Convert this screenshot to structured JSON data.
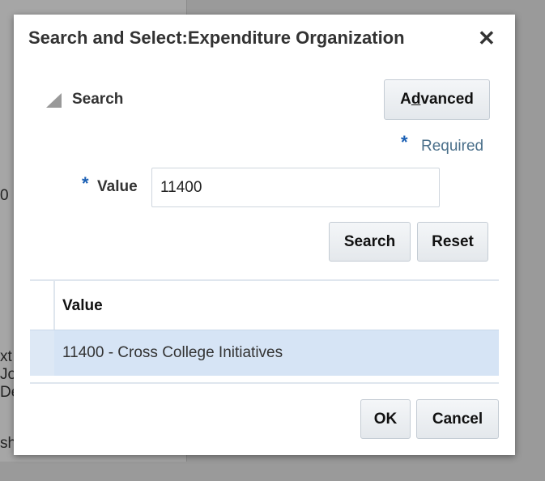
{
  "background": {
    "fragments": [
      "0",
      "xt",
      "Jo",
      "De",
      "sh"
    ]
  },
  "dialog": {
    "title": "Search and Select:Expenditure Organization",
    "close_icon": "close-icon",
    "search_section": {
      "label": "Search",
      "expanded": true,
      "advanced_label_pre": "A",
      "advanced_label_u": "d",
      "advanced_label_post": "vanced"
    },
    "required_marker": "*",
    "required_label": "Required",
    "field": {
      "label": "Value",
      "required_marker": "*",
      "value": "11400"
    },
    "search_button": "Search",
    "reset_button": "Reset",
    "table": {
      "columns": [
        "Value"
      ],
      "rows": [
        {
          "value": "11400 - Cross College Initiatives",
          "selected": true
        }
      ]
    },
    "ok_button": "OK",
    "cancel_button": "Cancel",
    "colors": {
      "selected_row": "#d6e4f5",
      "required": "#1a5fb4",
      "required_text": "#4a6f8a"
    }
  }
}
